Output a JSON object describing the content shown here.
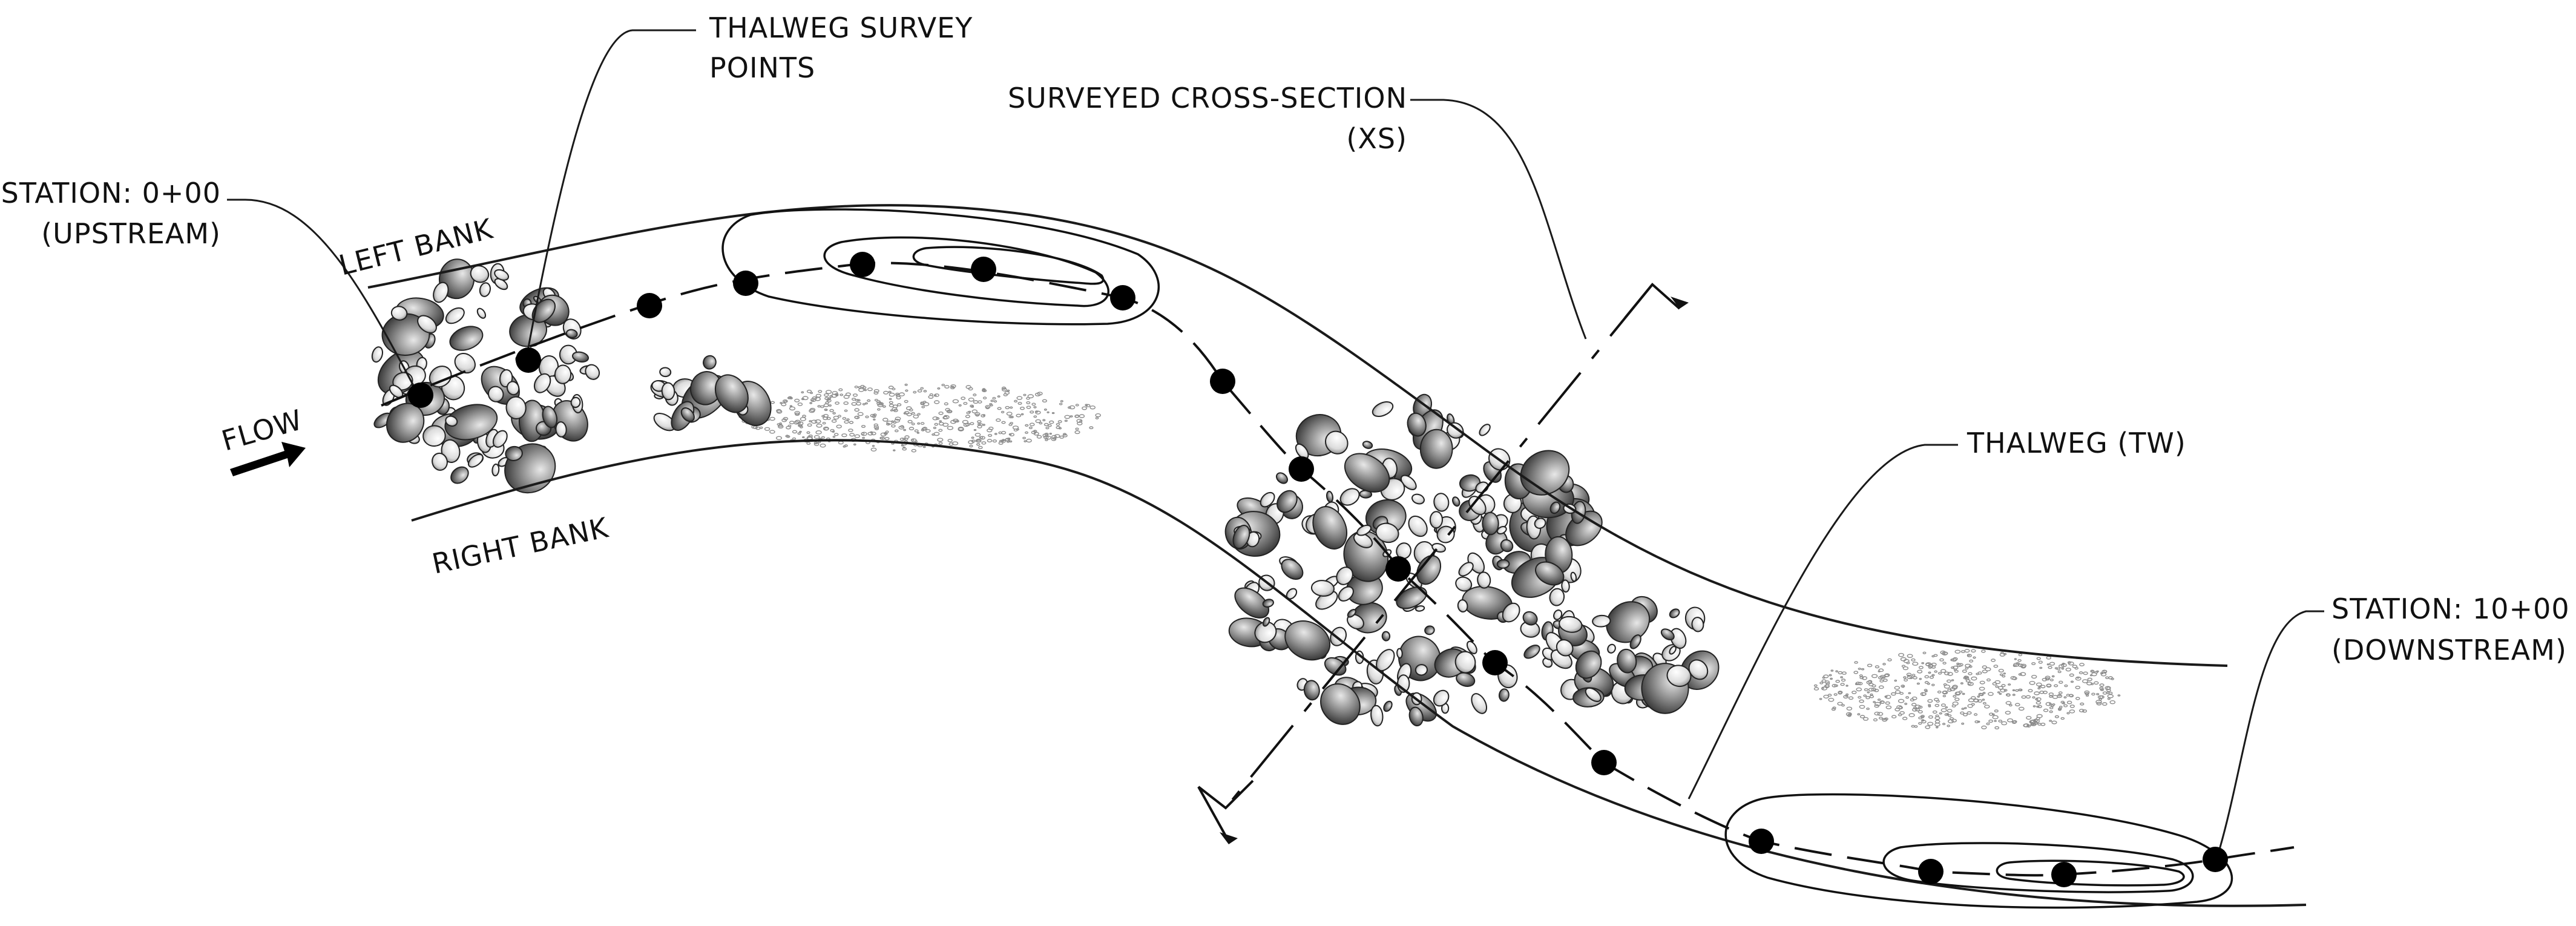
{
  "labels": {
    "thalweg_survey_points": [
      "THALWEG SURVEY",
      "POINTS"
    ],
    "station_upstream": [
      "STATION: 0+00",
      "(UPSTREAM)"
    ],
    "left_bank": "LEFT BANK",
    "flow": "FLOW",
    "right_bank": "RIGHT BANK",
    "surveyed_cross_section": [
      "SURVEYED CROSS-SECTION",
      "(XS)"
    ],
    "thalweg": "THALWEG (TW)",
    "station_downstream": [
      "STATION: 10+00",
      "(DOWNSTREAM)"
    ]
  },
  "colors": {
    "ink": "#111111",
    "rock_dark": "#555555",
    "rock_mid": "#9a9a9a",
    "rock_light": "#d6d6d6",
    "gravel": "#8c8c8c",
    "survey_point": "#000000"
  }
}
